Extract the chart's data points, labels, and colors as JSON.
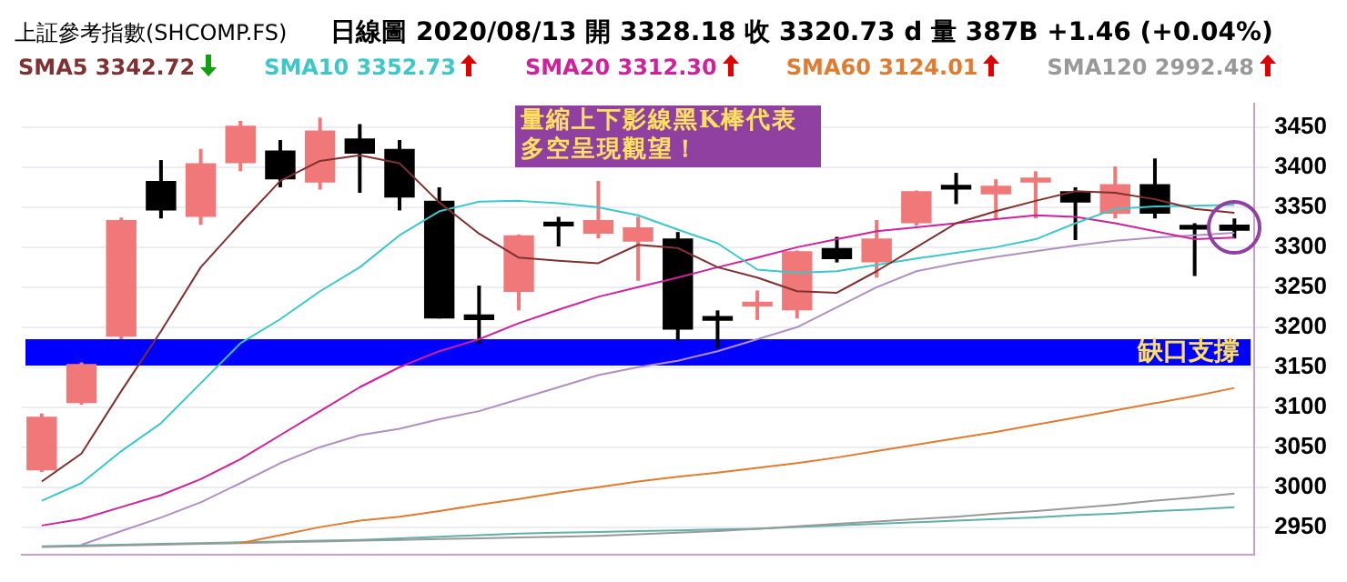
{
  "chart_data": {
    "type": "candlestick",
    "title": "上証參考指數(SHCOMP.FS)",
    "subtitle": "日線圖 2020/08/13 開 3328.18 收 3320.73 d 量 387B +1.46 (+0.04%)",
    "categories": [
      null,
      null,
      null,
      null,
      null,
      null,
      null,
      null,
      null,
      null,
      null,
      null,
      null,
      null,
      null,
      null,
      null,
      null,
      null,
      null,
      null,
      null,
      null,
      null,
      null,
      null,
      null,
      null,
      null,
      null,
      null
    ],
    "ohlc": [
      [
        3021,
        3092,
        3019,
        3088
      ],
      [
        3105,
        3156,
        3103,
        3154
      ],
      [
        3188,
        3337,
        3185,
        3334
      ],
      [
        3383,
        3409,
        3336,
        3346
      ],
      [
        3338,
        3423,
        3328,
        3405
      ],
      [
        3405,
        3458,
        3395,
        3452
      ],
      [
        3421,
        3434,
        3375,
        3385
      ],
      [
        3381,
        3462,
        3372,
        3446
      ],
      [
        3436,
        3454,
        3368,
        3417
      ],
      [
        3423,
        3434,
        3346,
        3362
      ],
      [
        3358,
        3375,
        3211,
        3211
      ],
      [
        3216,
        3252,
        3179,
        3209
      ],
      [
        3244,
        3316,
        3221,
        3315
      ],
      [
        3332,
        3338,
        3301,
        3326
      ],
      [
        3317,
        3383,
        3311,
        3334
      ],
      [
        3307,
        3338,
        3258,
        3325
      ],
      [
        3311,
        3319,
        3183,
        3197
      ],
      [
        3214,
        3221,
        3174,
        3208
      ],
      [
        3226,
        3246,
        3209,
        3232
      ],
      [
        3221,
        3296,
        3211,
        3295
      ],
      [
        3299,
        3313,
        3281,
        3285
      ],
      [
        3281,
        3334,
        3262,
        3311
      ],
      [
        3330,
        3371,
        3327,
        3370
      ],
      [
        3378,
        3393,
        3354,
        3372
      ],
      [
        3366,
        3385,
        3334,
        3377
      ],
      [
        3381,
        3395,
        3336,
        3387
      ],
      [
        3370,
        3375,
        3309,
        3356
      ],
      [
        3342,
        3401,
        3336,
        3379
      ],
      [
        3379,
        3411,
        3336,
        3342
      ],
      [
        3328,
        3330,
        3264,
        3322
      ],
      [
        3328.18,
        3336,
        3311,
        3320.73
      ]
    ],
    "colors": [
      "#f07878",
      "#f07878",
      "#f07878",
      "#000000",
      "#f07878",
      "#f07878",
      "#000000",
      "#f07878",
      "#000000",
      "#000000",
      "#000000",
      "#000000",
      "#f07878",
      "#000000",
      "#f07878",
      "#f07878",
      "#000000",
      "#000000",
      "#f07878",
      "#f07878",
      "#000000",
      "#f07878",
      "#f07878",
      "#000000",
      "#f07878",
      "#f07878",
      "#000000",
      "#f07878",
      "#000000",
      "#000000",
      "#000000"
    ],
    "series": [
      {
        "type": "line",
        "name": "SMA5 3342.72",
        "color": "#7f3030",
        "values": [
          3007,
          3042,
          3120,
          3195,
          3275,
          3330,
          3383,
          3408,
          3415,
          3405,
          3356,
          3317,
          3287,
          3283,
          3280,
          3303,
          3299,
          3275,
          3262,
          3245,
          3243,
          3270,
          3300,
          3330,
          3345,
          3358,
          3370,
          3368,
          3360,
          3348,
          3343
        ]
      },
      {
        "type": "line",
        "name": "SMA10 3352.73",
        "color": "#3cc8c8",
        "values": [
          2983,
          3005,
          3045,
          3080,
          3130,
          3180,
          3210,
          3245,
          3275,
          3315,
          3345,
          3357,
          3358,
          3355,
          3350,
          3340,
          3322,
          3305,
          3272,
          3268,
          3270,
          3278,
          3286,
          3293,
          3300,
          3310,
          3330,
          3348,
          3351,
          3352,
          3353
        ]
      },
      {
        "type": "line",
        "name": "SMA20 3312.30",
        "color": "#d0209a",
        "values": [
          2952,
          2960,
          2975,
          2990,
          3010,
          3035,
          3065,
          3095,
          3125,
          3150,
          3170,
          3185,
          3205,
          3222,
          3238,
          3250,
          3262,
          3275,
          3287,
          3300,
          3310,
          3320,
          3325,
          3330,
          3335,
          3340,
          3338,
          3330,
          3320,
          3310,
          3312
        ]
      },
      {
        "type": "line",
        "name": "SMA60 3124.01",
        "color": "#e07b30",
        "values": [
          null,
          null,
          null,
          null,
          null,
          2930,
          2940,
          2950,
          2958,
          2963,
          2970,
          2978,
          2985,
          2993,
          3000,
          3007,
          3013,
          3018,
          3024,
          3030,
          3037,
          3045,
          3053,
          3061,
          3069,
          3078,
          3087,
          3096,
          3105,
          3114,
          3124
        ]
      },
      {
        "type": "line",
        "name": "SMA120 2992.48",
        "color": "#999999",
        "values": [
          2925,
          2926,
          2927,
          2928,
          2929,
          2930,
          2931,
          2932,
          2933,
          2934,
          2935,
          2936,
          2937,
          2938,
          2939,
          2941,
          2943,
          2945,
          2948,
          2951,
          2954,
          2957,
          2960,
          2963,
          2967,
          2970,
          2974,
          2978,
          2983,
          2987,
          2992
        ]
      },
      {
        "type": "line",
        "color": "#b090c0",
        "values": [
          null,
          2928,
          2945,
          2962,
          2981,
          3005,
          3030,
          3050,
          3065,
          3073,
          3085,
          3095,
          3110,
          3125,
          3140,
          3150,
          3158,
          3170,
          3185,
          3200,
          3225,
          3250,
          3270,
          3280,
          3288,
          3295,
          3302,
          3308,
          3312,
          3315,
          3318
        ]
      },
      {
        "type": "line",
        "color": "#60b0a8",
        "values": [
          2926,
          2927,
          2928,
          2929,
          2930,
          2931,
          2932,
          2933,
          2934,
          2936,
          2938,
          2940,
          2942,
          2943,
          2944,
          2945,
          2946,
          2947,
          2948,
          2950,
          2952,
          2954,
          2956,
          2958,
          2960,
          2962,
          2965,
          2967,
          2970,
          2972,
          2975
        ]
      }
    ],
    "ylim": [
      2915,
      3480
    ],
    "yticks": [
      2950,
      3000,
      3050,
      3100,
      3150,
      3200,
      3250,
      3300,
      3350,
      3400,
      3450
    ],
    "grid": "y",
    "tick_labels": "y",
    "legend": "top",
    "marker": "none",
    "bands": [
      {
        "axis": "y",
        "from": 3152,
        "to": 3185,
        "label": "缺口支撐",
        "color": "#0000ff"
      }
    ],
    "annotations": [
      "量縮上下影線黑K棒代表多空呈現觀望！"
    ]
  }
}
